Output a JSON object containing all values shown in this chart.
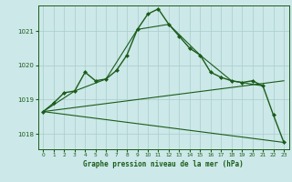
{
  "title": "Graphe pression niveau de la mer (hPa)",
  "bg_color": "#cce8e8",
  "grid_color": "#aacccc",
  "line_color": "#1a5c1a",
  "xlim": [
    -0.5,
    23.5
  ],
  "ylim": [
    1017.55,
    1021.75
  ],
  "yticks": [
    1018,
    1019,
    1020,
    1021
  ],
  "xticks": [
    0,
    1,
    2,
    3,
    4,
    5,
    6,
    7,
    8,
    9,
    10,
    11,
    12,
    13,
    14,
    15,
    16,
    17,
    18,
    19,
    20,
    21,
    22,
    23
  ],
  "series": [
    {
      "x": [
        0,
        1,
        2,
        3,
        4,
        5,
        6,
        7,
        8,
        9,
        10,
        11,
        12,
        13,
        14,
        15,
        16,
        17,
        18,
        19,
        20,
        21,
        22,
        23
      ],
      "y": [
        1018.65,
        1018.9,
        1019.2,
        1019.25,
        1019.8,
        1019.55,
        1019.6,
        1019.85,
        1020.3,
        1021.05,
        1021.5,
        1021.65,
        1021.2,
        1020.85,
        1020.5,
        1020.3,
        1019.8,
        1019.65,
        1019.55,
        1019.5,
        1019.55,
        1019.4,
        1018.55,
        1017.75
      ],
      "marker": "D",
      "markersize": 2.0,
      "linewidth": 1.0
    },
    {
      "x": [
        0,
        3,
        6,
        9,
        12,
        15,
        18,
        21
      ],
      "y": [
        1018.65,
        1019.25,
        1019.6,
        1021.05,
        1021.2,
        1020.3,
        1019.55,
        1019.4
      ],
      "marker": null,
      "linewidth": 0.8
    },
    {
      "x": [
        0,
        23
      ],
      "y": [
        1018.65,
        1019.55
      ],
      "marker": null,
      "linewidth": 0.8
    },
    {
      "x": [
        0,
        23
      ],
      "y": [
        1018.65,
        1017.75
      ],
      "marker": null,
      "linewidth": 0.8
    }
  ]
}
